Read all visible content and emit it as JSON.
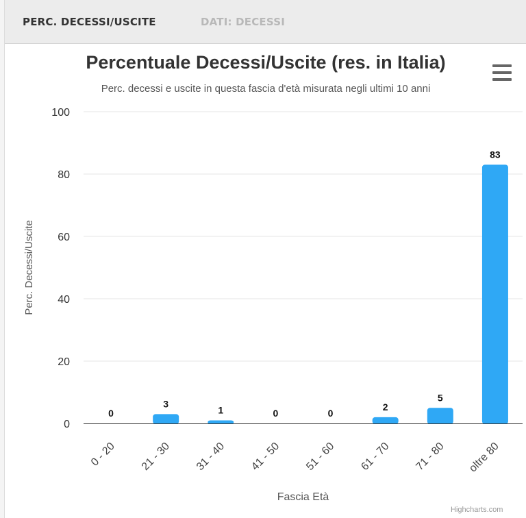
{
  "tabs": [
    {
      "label": "PERC. DECESSI/USCITE",
      "active": true
    },
    {
      "label": "DATI: DECESSI",
      "active": false
    }
  ],
  "menu_icon": "hamburger-menu-icon",
  "credits": "Highcharts.com",
  "colors": {
    "bar": "#2fa8f5",
    "active_tab": "#333333",
    "inactive_tab": "#b8b8b8"
  },
  "chart_data": {
    "type": "bar",
    "title": "Percentuale Decessi/Uscite (res. in Italia)",
    "subtitle": "Perc. decessi e uscite in questa fascia d'età misurata negli ultimi 10 anni",
    "xlabel": "Fascia Età",
    "ylabel": "Perc. Decessi/Uscite",
    "categories": [
      "0 - 20",
      "21 - 30",
      "31 - 40",
      "41 - 50",
      "51 - 60",
      "61 - 70",
      "71 - 80",
      "oltre 80"
    ],
    "values": [
      0,
      3,
      1,
      0,
      0,
      2,
      5,
      83
    ],
    "ylim": [
      0,
      100
    ],
    "yticks": [
      0,
      20,
      40,
      60,
      80,
      100
    ],
    "grid": true,
    "legend": "none"
  }
}
